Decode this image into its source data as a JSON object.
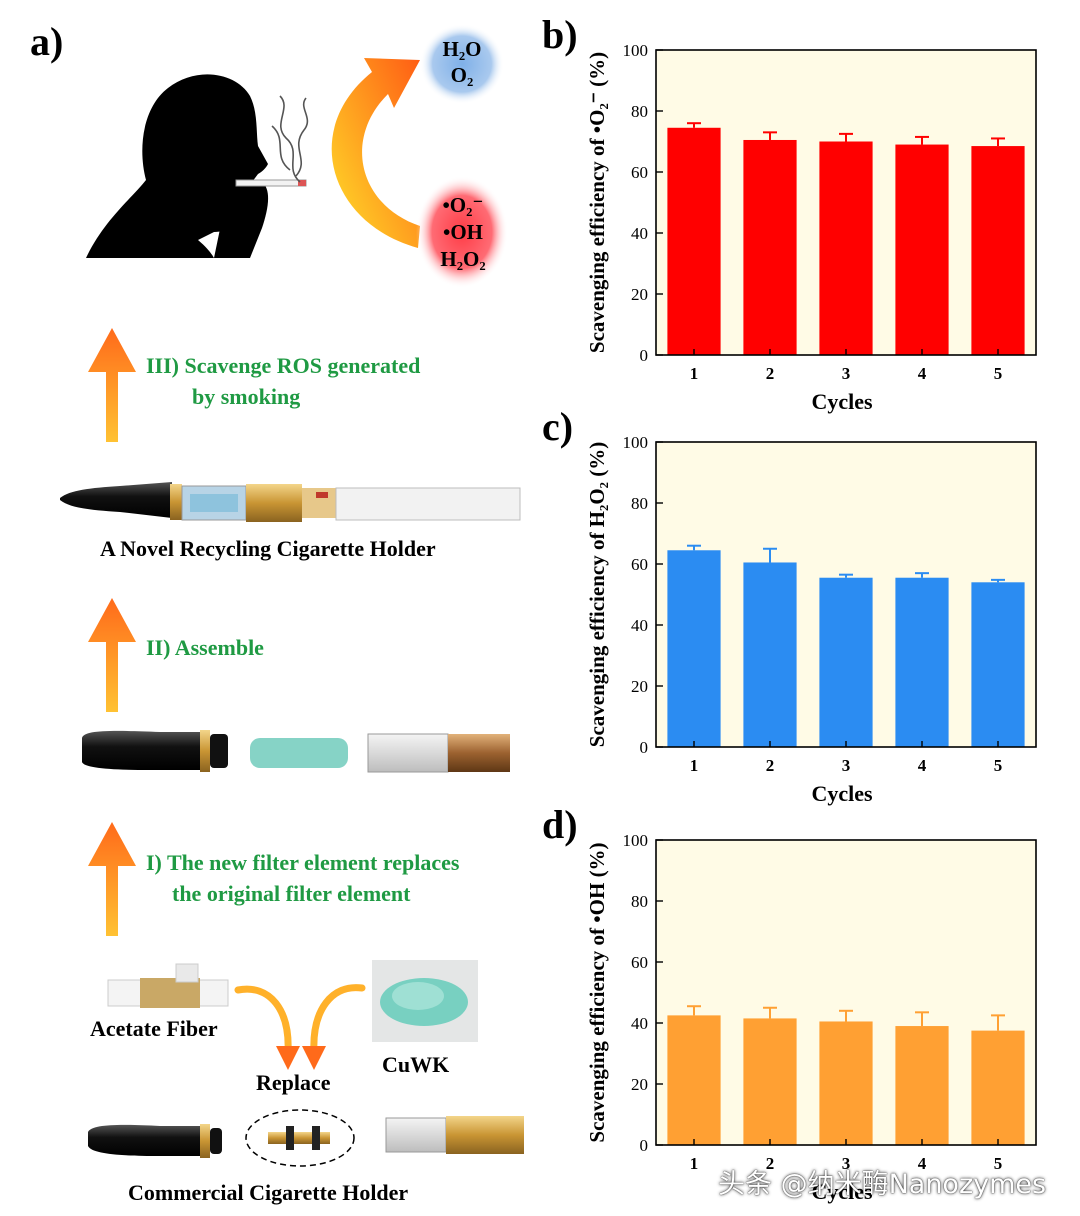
{
  "panel_a": {
    "label": "a)",
    "ros_products": [
      "H₂O",
      "O₂"
    ],
    "ros_species": [
      "•O₂⁻",
      "•OH",
      "H₂O₂"
    ],
    "step3_line1": "III) Scavenge ROS generated",
    "step3_line2": "by smoking",
    "holder_caption": "A  Novel Recycling Cigarette Holder",
    "step2": "II) Assemble",
    "step1_line1": "I) The new filter element replaces",
    "step1_line2": "the original filter element",
    "acetate_label": "Acetate Fiber",
    "cuwk_label": "CuWK",
    "replace_label": "Replace",
    "commercial_caption": "Commercial Cigarette Holder"
  },
  "colors": {
    "superoxide": "#ff0000",
    "h2o2": "#2b8cf2",
    "hydroxyl": "#ffa033",
    "plot_bg": "#fffbe6",
    "step_text": "#1f9a43"
  },
  "chart_data": [
    {
      "panel": "b)",
      "type": "bar",
      "xlabel": "Cycles",
      "ylabel": "Scavenging efficiency of •O₂⁻ (%)",
      "categories": [
        "1",
        "2",
        "3",
        "4",
        "5"
      ],
      "values": [
        74.5,
        70.5,
        70.0,
        69.0,
        68.5
      ],
      "errors": [
        1.5,
        2.5,
        2.5,
        2.5,
        2.5
      ],
      "ylim": [
        0,
        100
      ],
      "yticks": [
        0,
        20,
        40,
        60,
        80,
        100
      ],
      "grid": false
    },
    {
      "panel": "c)",
      "type": "bar",
      "xlabel": "Cycles",
      "ylabel": "Scavenging efficiency of H₂O₂ (%)",
      "categories": [
        "1",
        "2",
        "3",
        "4",
        "5"
      ],
      "values": [
        64.5,
        60.5,
        55.5,
        55.5,
        54.0
      ],
      "errors": [
        1.5,
        4.5,
        1.0,
        1.5,
        0.8
      ],
      "ylim": [
        0,
        100
      ],
      "yticks": [
        0,
        20,
        40,
        60,
        80,
        100
      ],
      "grid": false
    },
    {
      "panel": "d)",
      "type": "bar",
      "xlabel": "Cycles",
      "ylabel": "Scavenging efficiency of •OH (%)",
      "categories": [
        "1",
        "2",
        "3",
        "4",
        "5"
      ],
      "values": [
        42.5,
        41.5,
        40.5,
        39.0,
        37.5
      ],
      "errors": [
        3.0,
        3.5,
        3.5,
        4.5,
        5.0
      ],
      "ylim": [
        0,
        100
      ],
      "yticks": [
        0,
        20,
        40,
        60,
        80,
        100
      ],
      "grid": false
    }
  ],
  "watermark": "头条 @纳米酶Nanozymes"
}
